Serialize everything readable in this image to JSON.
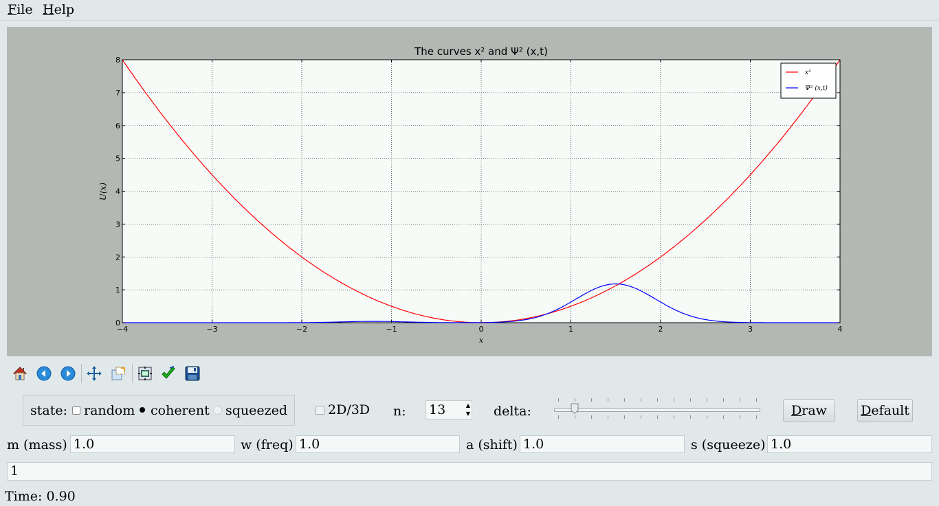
{
  "menu": {
    "file": "File",
    "help": "Help"
  },
  "toolbar": {
    "icons": [
      "home-icon",
      "back-arrow-icon",
      "forward-arrow-icon",
      "pan-icon",
      "zoom-icon",
      "configure-subplots-icon",
      "edit-checkmark-icon",
      "save-icon"
    ]
  },
  "controls": {
    "state_label": "state:",
    "state_options": [
      "random",
      "coherent",
      "squeezed"
    ],
    "state_selected": "coherent",
    "toggle_3d_label": "2D/3D",
    "toggle_3d_checked": false,
    "n_label": "n:",
    "n_value": "13",
    "delta_label": "delta:",
    "delta_value": 0.1,
    "draw_label": "Draw",
    "default_label": "Default"
  },
  "params": {
    "mass_label": "m (mass)",
    "mass_value": "1.0",
    "freq_label": "w (freq)",
    "freq_value": "1.0",
    "shift_label": "a (shift)",
    "shift_value": "1.0",
    "squeeze_label": "s (squeeze)",
    "squeeze_value": "1.0"
  },
  "expression_value": "1",
  "status": {
    "time_text": "Time: 0.90"
  },
  "chart_data": {
    "type": "line",
    "title": "The curves x² and Ψ² (x,t)",
    "xlabel": "x",
    "ylabel": "U(x)",
    "xlim": [
      -4,
      4
    ],
    "ylim": [
      0,
      8
    ],
    "xticks": [
      "−4",
      "−3",
      "−2",
      "−1",
      "0",
      "1",
      "2",
      "3",
      "4"
    ],
    "yticks": [
      "0",
      "1",
      "2",
      "3",
      "4",
      "5",
      "6",
      "7",
      "8"
    ],
    "grid": true,
    "legend_position": "top-right",
    "series": [
      {
        "name": "x²",
        "color": "#ff0000",
        "kind": "parabola",
        "coef": 0.5
      },
      {
        "name": "Ψ² (x,t)",
        "color": "#0000ff",
        "kind": "gaussian",
        "amplitude": 1.18,
        "center": 1.5,
        "width": 0.63,
        "bump_amp": 0.04,
        "bump_center": -1.2
      }
    ]
  }
}
